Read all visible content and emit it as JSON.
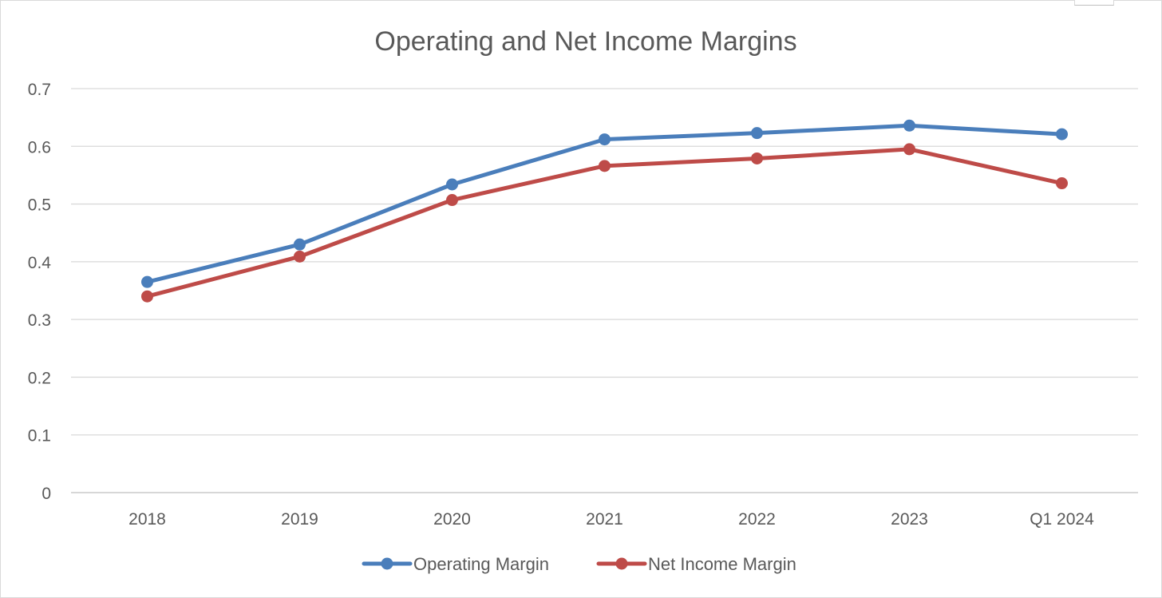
{
  "chart_data": {
    "type": "line",
    "title": "Operating and Net Income Margins",
    "xlabel": "",
    "ylabel": "",
    "categories": [
      "2018",
      "2019",
      "2020",
      "2021",
      "2022",
      "2023",
      "Q1 2024"
    ],
    "ylim": [
      0,
      0.7
    ],
    "yticks": [
      "0",
      "0.1",
      "0.2",
      "0.3",
      "0.4",
      "0.5",
      "0.6",
      "0.7"
    ],
    "grid": true,
    "legend_position": "bottom",
    "series": [
      {
        "name": "Operating Margin",
        "color": "#4a7ebb",
        "values": [
          0.365,
          0.43,
          0.534,
          0.612,
          0.623,
          0.636,
          0.621
        ]
      },
      {
        "name": "Net Income Margin",
        "color": "#be4b48",
        "values": [
          0.34,
          0.409,
          0.507,
          0.566,
          0.579,
          0.595,
          0.536
        ]
      }
    ]
  }
}
